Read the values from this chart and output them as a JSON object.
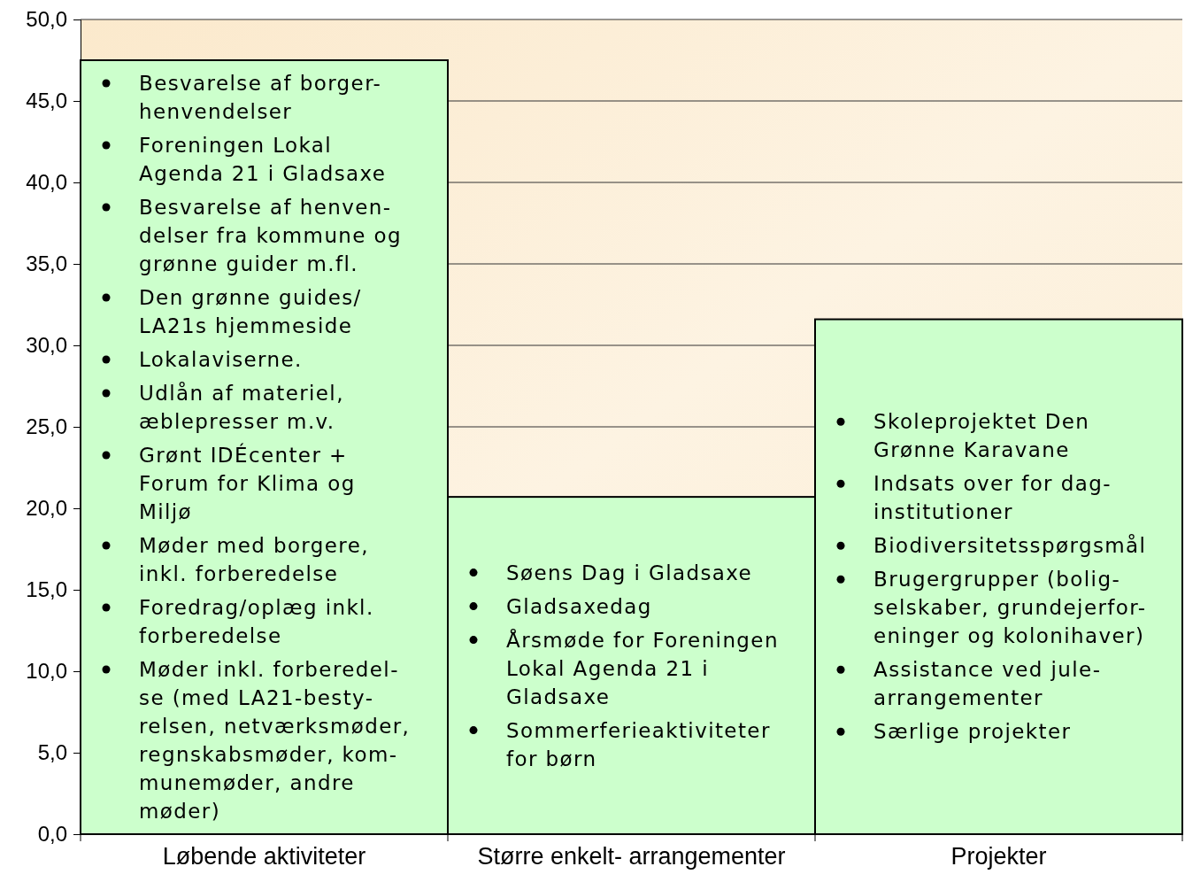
{
  "chart_data": {
    "type": "bar",
    "categories": [
      "Løbende aktiviteter",
      "Større enkelt- arrangementer",
      "Projekter"
    ],
    "values": [
      47.5,
      20.7,
      31.6
    ],
    "color": "#ccffcc",
    "ylim": [
      0,
      50
    ],
    "yticks": [
      {
        "value": 0,
        "label": "0,0"
      },
      {
        "value": 5,
        "label": "5,0"
      },
      {
        "value": 10,
        "label": "10,0"
      },
      {
        "value": 15,
        "label": "15,0"
      },
      {
        "value": 20,
        "label": "20,0"
      },
      {
        "value": 25,
        "label": "25,0"
      },
      {
        "value": 30,
        "label": "30,0"
      },
      {
        "value": 35,
        "label": "35,0"
      },
      {
        "value": 40,
        "label": "40,0"
      },
      {
        "value": 45,
        "label": "45,0"
      },
      {
        "value": 50,
        "label": "50,0"
      }
    ],
    "grid": "y",
    "annotations": [
      "Besvarelse af borger-\nhenvendelser\n\nForeningen Lokal\nAgenda 21 i Gladsaxe\n\nBesvarelse af henven-\ndelser fra kommune og\ngrønne guider m.fl.\n\nDen grønne guides/\nLA21s hjemmeside\n\nLokalaviserne.\n\nUdlån af materiel,\næblepresser m.v.\n\nGrønt IDÉcenter +\nForum for Klima og\nMiljø\n\nMøder med borgere,\ninkl. forberedelse\n\nForedrag/oplæg inkl.\nforberedelse\n\nMøder inkl. forberedel-\nse (med LA21-besty-\nrelsen, netværksmøder,\nregnskabsmøder, kom-\nmunemøder, andre\nmøder)",
      "Søens Dag i Gladsaxe\n\nGladsaxedag\n\nÅrsmøde for Foreningen\nLokal Agenda 21 i\nGladsaxe\n\nSommerferieaktiviteter\nfor børn",
      "Skoleprojektet Den\nGrønne Karavane\n\nIndsats over for dag-\ninstitutioner\n\nBiodiversitetsspørgsmål\n\nBrugergrupper (bolig-\nselskaber, grundejerfor-\neninger og kolonihaver)\n\nAssistance ved jule-\narrangementer\n\nSærlige projekter"
    ]
  }
}
